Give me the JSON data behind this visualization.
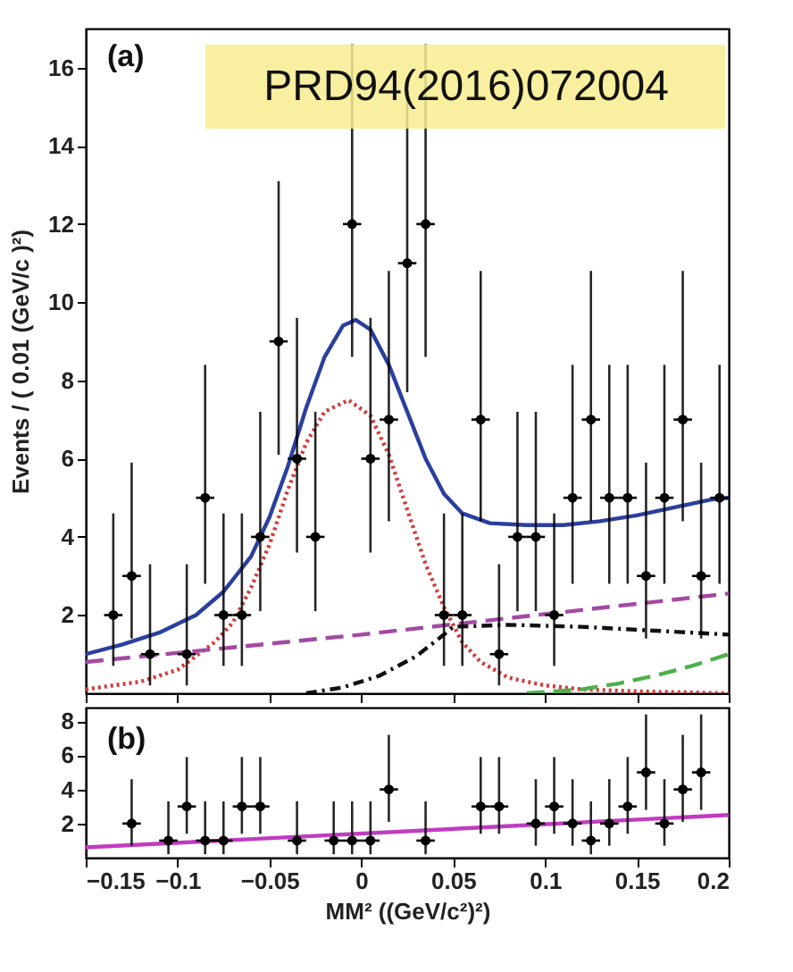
{
  "chart_data": [
    {
      "type": "scatter",
      "ylabel": "Events / ( 0.01 (GeV/c )²)",
      "xlim": [
        -0.15,
        0.2
      ],
      "xticks": [
        -0.15,
        -0.1,
        -0.05,
        0,
        0.05,
        0.1,
        0.15,
        0.2
      ],
      "ylim": [
        0,
        17
      ],
      "yticks": [
        2,
        4,
        6,
        8,
        10,
        12,
        14,
        16
      ],
      "tick_labels": "y",
      "annotations": [
        "(a)",
        "PRD94(2016)072004"
      ],
      "series": [
        {
          "type": "scatter",
          "marker": "circle",
          "color": "#000000",
          "x": [
            -0.135,
            -0.125,
            -0.115,
            -0.095,
            -0.085,
            -0.075,
            -0.065,
            -0.055,
            -0.045,
            -0.035,
            -0.025,
            -0.005,
            0.005,
            0.015,
            0.025,
            0.035,
            0.045,
            0.055,
            0.065,
            0.075,
            0.085,
            0.095,
            0.105,
            0.115,
            0.125,
            0.135,
            0.145,
            0.155,
            0.165,
            0.175,
            0.185,
            0.195
          ],
          "values": [
            2,
            3,
            1,
            1,
            5,
            2,
            2,
            4,
            9,
            6,
            4,
            12,
            6,
            7,
            11,
            12,
            2,
            2,
            7,
            1,
            4,
            4,
            2,
            5,
            7,
            5,
            5,
            3,
            5,
            7,
            3,
            5
          ],
          "errors": [
            [
              0.7,
              4.6
            ],
            [
              1.4,
              5.9
            ],
            [
              0.2,
              3.3
            ],
            [
              0.2,
              3.3
            ],
            [
              2.8,
              8.4
            ],
            [
              0.7,
              4.6
            ],
            [
              0.7,
              4.6
            ],
            [
              2.1,
              7.2
            ],
            [
              6.1,
              13.1
            ],
            [
              3.6,
              9.6
            ],
            [
              2.1,
              7.2
            ],
            [
              8.6,
              16.6
            ],
            [
              3.6,
              9.6
            ],
            [
              4.4,
              10.8
            ],
            [
              7.7,
              15.4
            ],
            [
              8.6,
              16.6
            ],
            [
              0.7,
              4.6
            ],
            [
              0.7,
              4.6
            ],
            [
              4.4,
              10.8
            ],
            [
              0.2,
              3.3
            ],
            [
              2.1,
              7.2
            ],
            [
              2.1,
              7.2
            ],
            [
              0.7,
              4.6
            ],
            [
              2.8,
              8.4
            ],
            [
              4.4,
              10.8
            ],
            [
              2.8,
              8.4
            ],
            [
              2.8,
              8.4
            ],
            [
              1.4,
              5.9
            ],
            [
              2.8,
              8.4
            ],
            [
              4.4,
              10.8
            ],
            [
              1.4,
              5.9
            ],
            [
              2.8,
              8.4
            ]
          ],
          "xerrors": [
            0.005,
            0.005,
            0.005,
            0.005,
            0.005,
            0.005,
            0.005,
            0.005,
            0.005,
            0.005,
            0.005,
            0.005,
            0.005,
            0.005,
            0.005,
            0.005,
            0.005,
            0.005,
            0.005,
            0.005,
            0.005,
            0.005,
            0.005,
            0.005,
            0.005,
            0.005,
            0.005,
            0.005,
            0.005,
            0.005,
            0.005,
            0.005
          ]
        },
        {
          "type": "line",
          "color": "#2b3f9e",
          "line_style": "solid",
          "x": [
            -0.15,
            -0.13,
            -0.11,
            -0.09,
            -0.075,
            -0.06,
            -0.05,
            -0.04,
            -0.03,
            -0.02,
            -0.01,
            -0.003,
            0.005,
            0.015,
            0.025,
            0.035,
            0.045,
            0.055,
            0.07,
            0.09,
            0.11,
            0.13,
            0.15,
            0.17,
            0.19,
            0.2
          ],
          "values": [
            1.0,
            1.25,
            1.55,
            2.0,
            2.6,
            3.5,
            4.5,
            5.8,
            7.3,
            8.6,
            9.4,
            9.55,
            9.3,
            8.4,
            7.2,
            6.0,
            5.1,
            4.6,
            4.35,
            4.3,
            4.3,
            4.4,
            4.55,
            4.75,
            4.95,
            5.0
          ]
        },
        {
          "type": "line",
          "color": "#d23a3a",
          "line_style": "dotted",
          "x": [
            -0.15,
            -0.12,
            -0.1,
            -0.08,
            -0.07,
            -0.06,
            -0.05,
            -0.04,
            -0.03,
            -0.02,
            -0.007,
            0.005,
            0.015,
            0.025,
            0.035,
            0.045,
            0.055,
            0.065,
            0.08,
            0.1,
            0.12,
            0.15,
            0.2
          ],
          "values": [
            0.1,
            0.3,
            0.6,
            1.3,
            1.8,
            2.7,
            3.8,
            5.2,
            6.4,
            7.2,
            7.5,
            7.1,
            6.1,
            4.7,
            3.3,
            2.2,
            1.3,
            0.8,
            0.4,
            0.2,
            0.1,
            0.05,
            0.0
          ]
        },
        {
          "type": "line",
          "color": "#a34aa3",
          "line_style": "dashed",
          "x": [
            -0.15,
            0.0,
            0.2
          ],
          "values": [
            0.8,
            1.5,
            2.55
          ]
        },
        {
          "type": "line",
          "color": "#111111",
          "line_style": "dashdot",
          "x": [
            -0.03,
            -0.01,
            0.01,
            0.03,
            0.045,
            0.05,
            0.08,
            0.12,
            0.16,
            0.2
          ],
          "values": [
            0.0,
            0.15,
            0.45,
            0.95,
            1.5,
            1.7,
            1.75,
            1.7,
            1.6,
            1.5
          ]
        },
        {
          "type": "line",
          "color": "#4cb04c",
          "line_style": "dashed",
          "x": [
            0.09,
            0.12,
            0.14,
            0.16,
            0.18,
            0.2
          ],
          "values": [
            0.0,
            0.1,
            0.25,
            0.45,
            0.7,
            1.0
          ]
        }
      ]
    },
    {
      "type": "scatter",
      "xlabel": "MM² ((GeV/c²)²)",
      "xlim": [
        -0.15,
        0.2
      ],
      "xticks": [
        -0.15,
        -0.1,
        -0.05,
        0,
        0.05,
        0.1,
        0.15,
        0.2
      ],
      "ylim": [
        0,
        8.8
      ],
      "yticks": [
        2,
        4,
        6,
        8
      ],
      "annotations": [
        "(b)"
      ],
      "series": [
        {
          "type": "scatter",
          "marker": "circle",
          "color": "#000000",
          "x": [
            -0.125,
            -0.105,
            -0.095,
            -0.085,
            -0.075,
            -0.065,
            -0.055,
            -0.035,
            -0.015,
            -0.005,
            0.005,
            0.015,
            0.035,
            0.065,
            0.075,
            0.095,
            0.105,
            0.115,
            0.125,
            0.135,
            0.145,
            0.155,
            0.165,
            0.175,
            0.185
          ],
          "values": [
            2,
            1,
            3,
            1,
            1,
            3,
            3,
            1,
            1,
            1,
            1,
            4,
            1,
            3,
            3,
            2,
            3,
            2,
            1,
            2,
            3,
            5,
            2,
            4,
            5
          ],
          "errors": [
            [
              0.7,
              4.6
            ],
            [
              0.2,
              3.3
            ],
            [
              1.4,
              5.9
            ],
            [
              0.2,
              3.3
            ],
            [
              0.2,
              3.3
            ],
            [
              1.4,
              5.9
            ],
            [
              1.4,
              5.9
            ],
            [
              0.2,
              3.3
            ],
            [
              0.2,
              3.3
            ],
            [
              0.2,
              3.3
            ],
            [
              0.2,
              3.3
            ],
            [
              2.1,
              7.2
            ],
            [
              0.2,
              3.3
            ],
            [
              1.4,
              5.9
            ],
            [
              1.4,
              5.9
            ],
            [
              0.7,
              4.6
            ],
            [
              1.4,
              5.9
            ],
            [
              0.7,
              4.6
            ],
            [
              0.2,
              3.3
            ],
            [
              0.7,
              4.6
            ],
            [
              1.4,
              5.9
            ],
            [
              2.8,
              8.4
            ],
            [
              0.7,
              4.6
            ],
            [
              2.1,
              7.2
            ],
            [
              2.8,
              8.4
            ]
          ],
          "xerrors": [
            0.005,
            0.005,
            0.005,
            0.005,
            0.005,
            0.005,
            0.005,
            0.005,
            0.005,
            0.005,
            0.005,
            0.005,
            0.005,
            0.005,
            0.005,
            0.005,
            0.005,
            0.005,
            0.005,
            0.005,
            0.005,
            0.005,
            0.005,
            0.005,
            0.005
          ]
        },
        {
          "type": "line",
          "color": "#c03cc0",
          "line_style": "solid",
          "x": [
            -0.15,
            0.2
          ],
          "values": [
            0.6,
            2.5
          ]
        }
      ]
    }
  ]
}
